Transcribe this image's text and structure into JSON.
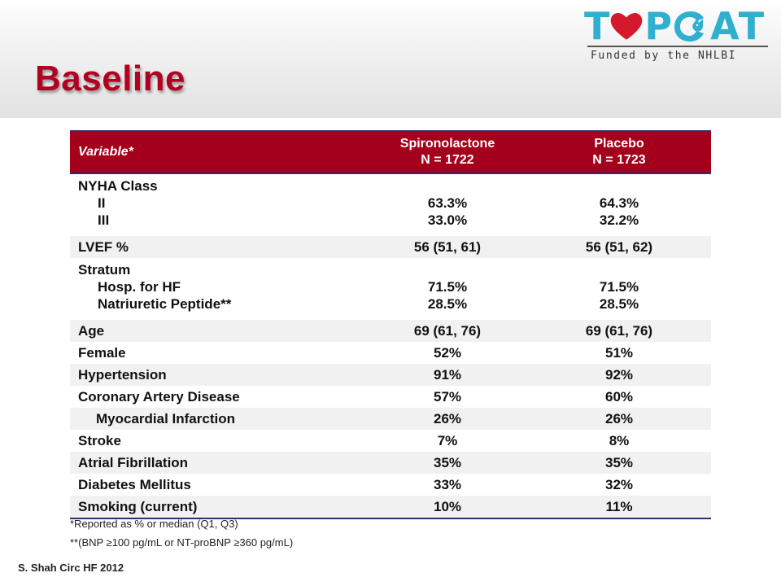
{
  "slide": {
    "title": "Baseline"
  },
  "logo": {
    "letter_t": "T",
    "letter_p": "P",
    "letter_a": "A",
    "letter_t2": "T",
    "funded": "Funded by the NHLBI",
    "heart_color": "#d4192c",
    "accent_color": "#2fb0cf"
  },
  "table": {
    "headers": {
      "variable": "Variable*",
      "spiro_line1": "Spironolactone",
      "spiro_line2": "N = 1722",
      "placebo_line1": "Placebo",
      "placebo_line2": "N = 1723"
    },
    "nyha": {
      "label": "NYHA Class",
      "rows": [
        {
          "label": "II",
          "spiro": "63.3%",
          "placebo": "64.3%"
        },
        {
          "label": "III",
          "spiro": "33.0%",
          "placebo": "32.2%"
        }
      ]
    },
    "lvef": {
      "label": "LVEF %",
      "spiro": "56 (51, 61)",
      "placebo": "56 (51, 62)"
    },
    "stratum": {
      "label": "Stratum",
      "rows": [
        {
          "label": "Hosp. for HF",
          "spiro": "71.5%",
          "placebo": "71.5%"
        },
        {
          "label": "Natriuretic Peptide**",
          "spiro": "28.5%",
          "placebo": "28.5%"
        }
      ]
    },
    "rows": [
      {
        "label": "Age",
        "spiro": "69 (61, 76)",
        "placebo": "69 (61, 76)"
      },
      {
        "label": "Female",
        "spiro": "52%",
        "placebo": "51%"
      },
      {
        "label": "Hypertension",
        "spiro": "91%",
        "placebo": "92%"
      },
      {
        "label": "Coronary Artery Disease",
        "spiro": "57%",
        "placebo": "60%"
      },
      {
        "label": "Myocardial Infarction",
        "spiro": "26%",
        "placebo": "26%"
      },
      {
        "label": "Stroke",
        "spiro": "7%",
        "placebo": "8%"
      },
      {
        "label": "Atrial Fibrillation",
        "spiro": "35%",
        "placebo": "35%"
      },
      {
        "label": "Diabetes Mellitus",
        "spiro": "33%",
        "placebo": "32%"
      },
      {
        "label": "Smoking (current)",
        "spiro": "10%",
        "placebo": "11%"
      }
    ]
  },
  "footnotes": {
    "note1": "*Reported as % or median (Q1, Q3)",
    "note2": "**(BNP ≥100 pg/mL or NT-proBNP ≥360 pg/mL)"
  },
  "source": "S. Shah Circ HF 2012"
}
